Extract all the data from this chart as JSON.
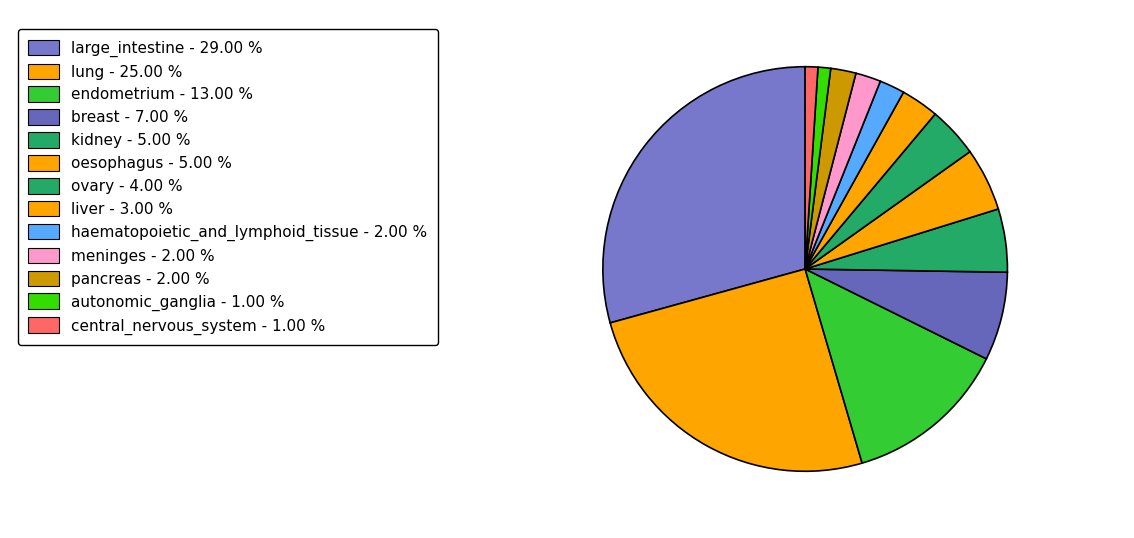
{
  "labels": [
    "large_intestine - 29.00 %",
    "lung - 25.00 %",
    "endometrium - 13.00 %",
    "breast - 7.00 %",
    "kidney - 5.00 %",
    "oesophagus - 5.00 %",
    "ovary - 4.00 %",
    "liver - 3.00 %",
    "haematopoietic_and_lymphoid_tissue - 2.00 %",
    "meninges - 2.00 %",
    "pancreas - 2.00 %",
    "autonomic_ganglia - 1.00 %",
    "central_nervous_system - 1.00 %"
  ],
  "values": [
    29,
    25,
    13,
    7,
    5,
    5,
    4,
    3,
    2,
    2,
    2,
    1,
    1
  ],
  "colors": [
    "#7777CC",
    "#FFA500",
    "#33CC33",
    "#6666BB",
    "#22AA66",
    "#FFA500",
    "#22AA66",
    "#FFA500",
    "#55AAFF",
    "#FF99CC",
    "#CC9900",
    "#33DD00",
    "#FF6666"
  ],
  "startangle": 90,
  "figsize": [
    11.34,
    5.38
  ]
}
